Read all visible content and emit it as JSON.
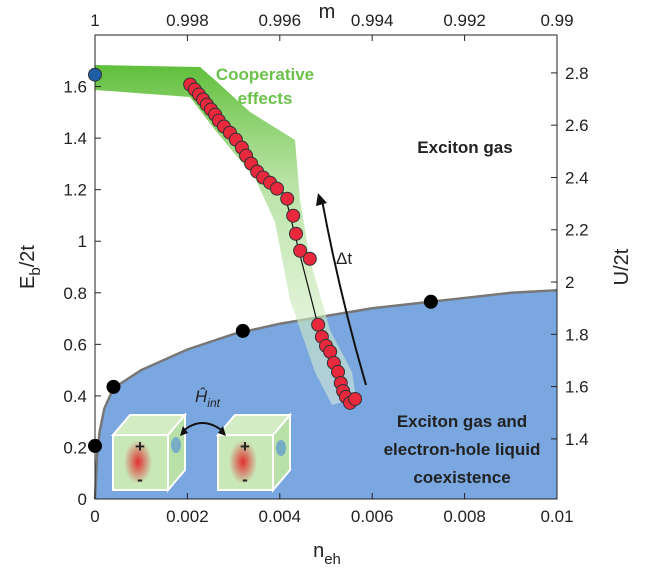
{
  "chart_data": {
    "type": "scatter",
    "xlabel": {
      "text": "n",
      "sub": "eh"
    },
    "ylabel": {
      "text": "E",
      "sub": "b",
      "rest": "/2t"
    },
    "x2label": "m",
    "y2label": "U/2t",
    "xlim": [
      0,
      0.01
    ],
    "xticks": [
      0,
      0.002,
      0.004,
      0.006,
      0.008,
      0.01
    ],
    "ylim": [
      0,
      1.8
    ],
    "yticks": [
      0,
      0.2,
      0.4,
      0.6,
      0.8,
      1,
      1.2,
      1.4,
      1.6
    ],
    "x2lim": [
      1,
      0.99
    ],
    "x2ticks": [
      1,
      0.998,
      0.996,
      0.994,
      0.992,
      0.99
    ],
    "y2lim": [
      1.17,
      2.945
    ],
    "y2ticks": [
      1.4,
      1.6,
      1.8,
      2,
      2.2,
      2.4,
      2.6,
      2.8
    ],
    "series": [
      {
        "type": "area",
        "color": "#7aa7e0",
        "x": [
          0,
          5e-05,
          0.0001,
          0.0002,
          0.0004,
          0.001,
          0.002,
          0.003,
          0.004,
          0.005,
          0.006,
          0.007,
          0.008,
          0.009,
          0.01
        ],
        "values": [
          0,
          0.18,
          0.26,
          0.35,
          0.43,
          0.5,
          0.58,
          0.64,
          0.68,
          0.71,
          0.74,
          0.76,
          0.78,
          0.8,
          0.81
        ]
      },
      {
        "type": "dots",
        "color": "#000000",
        "x": [
          0,
          0.0004,
          0.0032,
          0.00727
        ],
        "values": [
          0.206,
          0.435,
          0.652,
          0.765
        ]
      },
      {
        "type": "dots",
        "color": "#1f5fa8",
        "x": [
          0
        ],
        "values": [
          1.646
        ]
      },
      {
        "type": "dots",
        "color": "#e8283c",
        "x": [
          0.00206,
          0.00216,
          0.00225,
          0.00234,
          0.00242,
          0.00251,
          0.0026,
          0.00268,
          0.00279,
          0.00292,
          0.00305,
          0.00318,
          0.00327,
          0.00338,
          0.00351,
          0.00364,
          0.00379,
          0.00394,
          0.00416,
          0.00429,
          0.00435,
          0.00444,
          0.00465,
          0.00483,
          0.00491,
          0.005,
          0.00509,
          0.00517,
          0.00526,
          0.00532,
          0.00537,
          0.00543,
          0.00552,
          0.00563
        ],
        "values": [
          1.608,
          1.588,
          1.569,
          1.55,
          1.53,
          1.511,
          1.491,
          1.468,
          1.445,
          1.421,
          1.394,
          1.363,
          1.332,
          1.301,
          1.27,
          1.247,
          1.227,
          1.204,
          1.165,
          1.099,
          1.029,
          0.963,
          0.932,
          0.676,
          0.629,
          0.594,
          0.571,
          0.528,
          0.493,
          0.45,
          0.419,
          0.396,
          0.373,
          0.388
        ]
      }
    ],
    "annotations": {
      "cooperative": [
        "Cooperative",
        "effects"
      ],
      "gas": "Exciton gas",
      "coexistence": [
        "Exciton gas and",
        "electron-hole liquid",
        "coexistence"
      ],
      "dt": "Δt",
      "hamiltonian": {
        "text": "Ĥ",
        "sub": "int"
      },
      "plus": "+",
      "minus": "-"
    }
  }
}
